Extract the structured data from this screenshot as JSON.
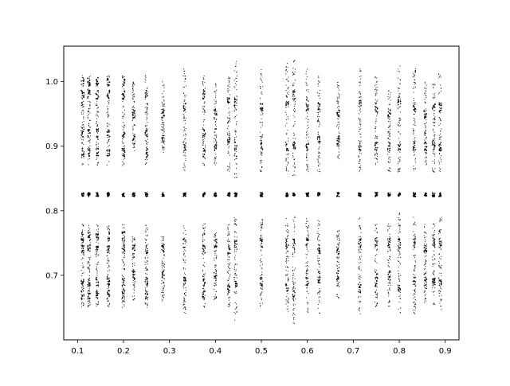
{
  "chart_data": {
    "type": "scatter",
    "title": "",
    "xlabel": "",
    "ylabel": "",
    "xlim": [
      0.07,
      0.93
    ],
    "ylim": [
      0.6,
      1.055
    ],
    "grid": false,
    "legend": "none",
    "marker_color": "#000000",
    "x_ticks": [
      {
        "value": 0.1,
        "label": "0.1"
      },
      {
        "value": 0.2,
        "label": "0.2"
      },
      {
        "value": 0.3,
        "label": "0.3"
      },
      {
        "value": 0.4,
        "label": "0.4"
      },
      {
        "value": 0.5,
        "label": "0.5"
      },
      {
        "value": 0.6,
        "label": "0.6"
      },
      {
        "value": 0.7,
        "label": "0.7"
      },
      {
        "value": 0.8,
        "label": "0.8"
      },
      {
        "value": 0.9,
        "label": "0.9"
      }
    ],
    "y_ticks": [
      {
        "value": 0.7,
        "label": "0.7"
      },
      {
        "value": 0.8,
        "label": "0.8"
      },
      {
        "value": 0.9,
        "label": "0.9"
      },
      {
        "value": 1.0,
        "label": "1.0"
      }
    ],
    "center_value": 0.825,
    "columns": [
      {
        "x": 0.111,
        "upper": [
          0.87,
          1.01
        ],
        "lower": [
          0.65,
          0.78
        ],
        "dense_upper": [
          0.89,
          0.92,
          0.98,
          1.0
        ],
        "dense_lower": [
          0.67,
          0.69,
          0.74,
          0.76
        ]
      },
      {
        "x": 0.125,
        "upper": [
          0.87,
          1.01
        ],
        "lower": [
          0.65,
          0.78
        ],
        "dense_upper": [
          0.89,
          0.92,
          0.98,
          1.0
        ],
        "dense_lower": [
          0.67,
          0.69,
          0.74,
          0.76
        ]
      },
      {
        "x": 0.143,
        "upper": [
          0.87,
          1.01
        ],
        "lower": [
          0.65,
          0.78
        ],
        "dense_upper": [
          0.89,
          0.92,
          0.98,
          1.0
        ],
        "dense_lower": [
          0.67,
          0.69,
          0.74,
          0.76
        ]
      },
      {
        "x": 0.167,
        "upper": [
          0.87,
          1.01
        ],
        "lower": [
          0.65,
          0.78
        ],
        "dense_upper": [
          0.89,
          0.92,
          0.98,
          1.0
        ],
        "dense_lower": [
          0.67,
          0.69,
          0.74,
          0.76
        ]
      },
      {
        "x": 0.2,
        "upper": [
          0.87,
          1.01
        ],
        "lower": [
          0.65,
          0.78
        ],
        "dense_upper": [
          0.89,
          0.92,
          0.98,
          1.0
        ],
        "dense_lower": [
          0.67,
          0.69,
          0.74,
          0.76
        ]
      },
      {
        "x": 0.222,
        "upper": [
          0.89,
          1.0
        ],
        "lower": [
          0.66,
          0.76
        ],
        "dense_upper": [
          0.91,
          0.95
        ],
        "dense_lower": [
          0.7,
          0.74
        ]
      },
      {
        "x": 0.25,
        "upper": [
          0.87,
          1.01
        ],
        "lower": [
          0.65,
          0.78
        ],
        "dense_upper": [
          0.89,
          0.92,
          0.98
        ],
        "dense_lower": [
          0.67,
          0.69,
          0.74
        ]
      },
      {
        "x": 0.286,
        "upper": [
          0.89,
          1.0
        ],
        "lower": [
          0.66,
          0.76
        ],
        "dense_upper": [
          0.91,
          0.95
        ],
        "dense_lower": [
          0.7,
          0.74
        ]
      },
      {
        "x": 0.333,
        "upper": [
          0.86,
          1.02
        ],
        "lower": [
          0.64,
          0.78
        ],
        "dense_upper": [
          0.9,
          0.96
        ],
        "dense_lower": [
          0.69,
          0.75
        ]
      },
      {
        "x": 0.375,
        "upper": [
          0.87,
          1.01
        ],
        "lower": [
          0.65,
          0.78
        ],
        "dense_upper": [
          0.89,
          0.92,
          0.98
        ],
        "dense_lower": [
          0.67,
          0.69,
          0.74
        ]
      },
      {
        "x": 0.4,
        "upper": [
          0.87,
          1.0
        ],
        "lower": [
          0.66,
          0.77
        ],
        "dense_upper": [
          0.9,
          0.95
        ],
        "dense_lower": [
          0.7,
          0.75
        ]
      },
      {
        "x": 0.429,
        "upper": [
          0.86,
          1.01
        ],
        "lower": [
          0.65,
          0.78
        ],
        "dense_upper": [
          0.91,
          0.97
        ],
        "dense_lower": [
          0.68,
          0.74
        ]
      },
      {
        "x": 0.444,
        "upper": [
          0.85,
          1.035
        ],
        "lower": [
          0.63,
          0.79
        ],
        "dense_upper": [
          0.9,
          0.97
        ],
        "dense_lower": [
          0.69,
          0.75
        ]
      },
      {
        "x": 0.5,
        "upper": [
          0.86,
          1.02
        ],
        "lower": [
          0.64,
          0.79
        ],
        "dense_upper": [
          0.9,
          0.96
        ],
        "dense_lower": [
          0.69,
          0.75
        ]
      },
      {
        "x": 0.556,
        "upper": [
          0.86,
          1.03
        ],
        "lower": [
          0.64,
          0.79
        ],
        "dense_upper": [
          0.9,
          0.97
        ],
        "dense_lower": [
          0.68,
          0.75
        ]
      },
      {
        "x": 0.571,
        "upper": [
          0.85,
          1.035
        ],
        "lower": [
          0.625,
          0.8
        ],
        "dense_upper": [
          0.9,
          0.98
        ],
        "dense_lower": [
          0.67,
          0.75
        ]
      },
      {
        "x": 0.6,
        "upper": [
          0.86,
          1.02
        ],
        "lower": [
          0.64,
          0.79
        ],
        "dense_upper": [
          0.9,
          0.96
        ],
        "dense_lower": [
          0.69,
          0.75
        ]
      },
      {
        "x": 0.625,
        "upper": [
          0.86,
          1.01
        ],
        "lower": [
          0.64,
          0.79
        ],
        "dense_upper": [
          0.91,
          0.96
        ],
        "dense_lower": [
          0.69,
          0.74
        ]
      },
      {
        "x": 0.667,
        "upper": [
          0.88,
          1.0
        ],
        "lower": [
          0.66,
          0.77
        ],
        "dense_upper": [
          0.91,
          0.95
        ],
        "dense_lower": [
          0.7,
          0.74
        ]
      },
      {
        "x": 0.714,
        "upper": [
          0.86,
          1.02
        ],
        "lower": [
          0.64,
          0.79
        ],
        "dense_upper": [
          0.9,
          0.97
        ],
        "dense_lower": [
          0.68,
          0.75
        ]
      },
      {
        "x": 0.75,
        "upper": [
          0.87,
          1.01
        ],
        "lower": [
          0.65,
          0.78
        ],
        "dense_upper": [
          0.9,
          0.96
        ],
        "dense_lower": [
          0.69,
          0.75
        ]
      },
      {
        "x": 0.778,
        "upper": [
          0.86,
          0.99
        ],
        "lower": [
          0.65,
          0.78
        ],
        "dense_upper": [
          0.9,
          0.95
        ],
        "dense_lower": [
          0.7,
          0.75
        ]
      },
      {
        "x": 0.8,
        "upper": [
          0.86,
          1.025
        ],
        "lower": [
          0.64,
          0.8
        ],
        "dense_upper": [
          0.9,
          0.97
        ],
        "dense_lower": [
          0.68,
          0.75
        ]
      },
      {
        "x": 0.833,
        "upper": [
          0.86,
          1.02
        ],
        "lower": [
          0.64,
          0.79
        ],
        "dense_upper": [
          0.9,
          0.96
        ],
        "dense_lower": [
          0.69,
          0.75
        ]
      },
      {
        "x": 0.857,
        "upper": [
          0.87,
          1.0
        ],
        "lower": [
          0.65,
          0.78
        ],
        "dense_upper": [
          0.9,
          0.95
        ],
        "dense_lower": [
          0.69,
          0.74
        ]
      },
      {
        "x": 0.875,
        "upper": [
          0.86,
          1.0
        ],
        "lower": [
          0.65,
          0.78
        ],
        "dense_upper": [
          0.9,
          0.96
        ],
        "dense_lower": [
          0.69,
          0.75
        ]
      },
      {
        "x": 0.889,
        "upper": [
          0.86,
          1.015
        ],
        "lower": [
          0.64,
          0.79
        ],
        "dense_upper": [
          0.9,
          0.96
        ],
        "dense_lower": [
          0.69,
          0.75
        ]
      }
    ]
  }
}
